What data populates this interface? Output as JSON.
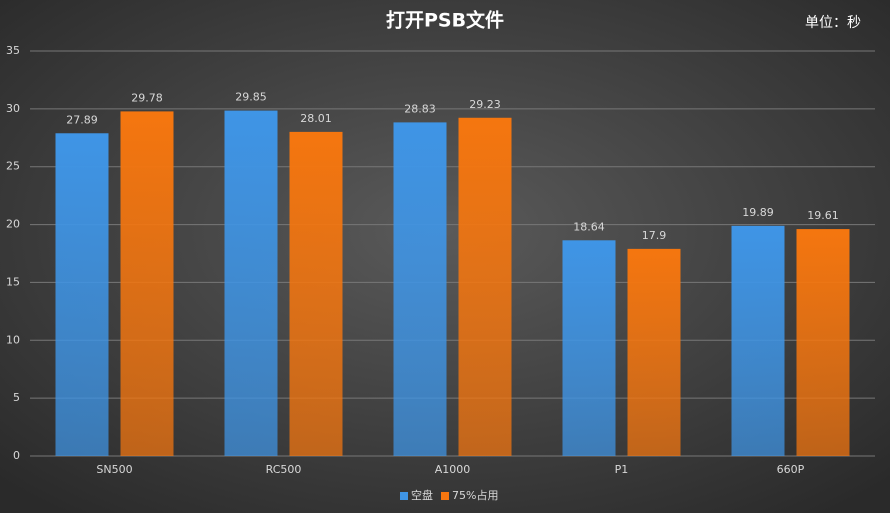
{
  "chart_data": {
    "type": "bar",
    "title": "打开PSB文件",
    "annotation": "单位：秒",
    "categories": [
      "SN500",
      "RC500",
      "A1000",
      "P1",
      "660P"
    ],
    "series": [
      {
        "name": "空盘",
        "color": "#3f95e6",
        "values": [
          27.89,
          29.85,
          28.83,
          18.64,
          19.89
        ]
      },
      {
        "name": "75%占用",
        "color": "#f5760f",
        "values": [
          29.78,
          28.01,
          29.23,
          17.9,
          19.61
        ]
      }
    ],
    "ylim": [
      0,
      35
    ],
    "yticks": [
      0,
      5,
      10,
      15,
      20,
      25,
      30,
      35
    ],
    "grid": true,
    "legend": "bottom"
  }
}
